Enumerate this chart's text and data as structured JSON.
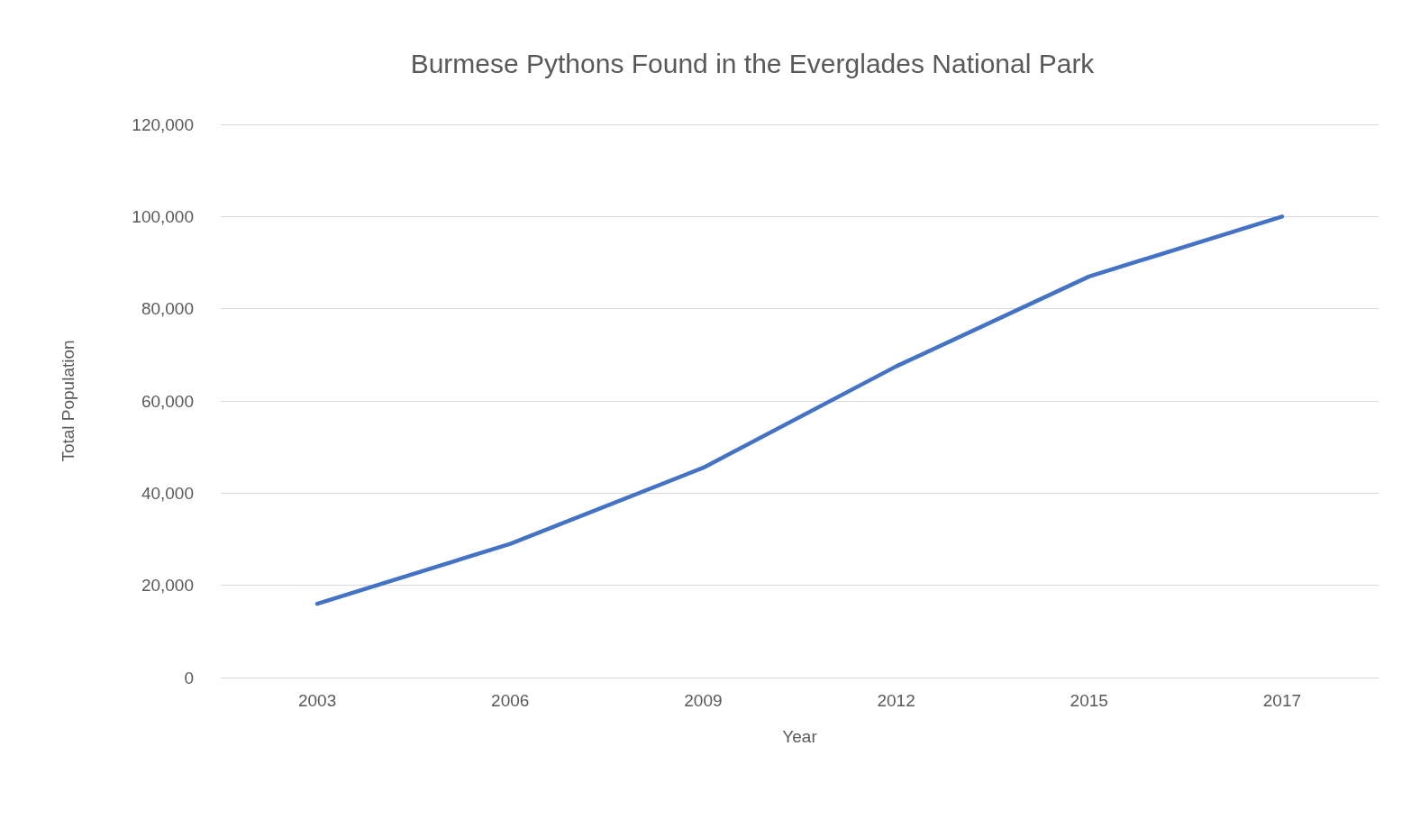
{
  "chart_data": {
    "type": "line",
    "title": "Burmese Pythons Found in the Everglades National Park",
    "xlabel": "Year",
    "ylabel": "Total Population",
    "categories": [
      "2003",
      "2006",
      "2009",
      "2012",
      "2015",
      "2017"
    ],
    "series": [
      {
        "color": "#4472c4",
        "values": [
          16000,
          29000,
          45500,
          67500,
          87000,
          100000
        ]
      }
    ],
    "ylim": [
      0,
      120000
    ],
    "yticks": [
      0,
      {
        "value": 20000,
        "label": "20,000"
      },
      {
        "value": 40000,
        "label": "40,000"
      },
      {
        "value": 60000,
        "label": "60,000"
      },
      {
        "value": 80000,
        "label": "80,000"
      },
      {
        "value": 100000,
        "label": "100,000"
      },
      {
        "value": 120000,
        "label": "120,000"
      }
    ],
    "grid": "y",
    "marker": "none",
    "line_style": "solid"
  }
}
